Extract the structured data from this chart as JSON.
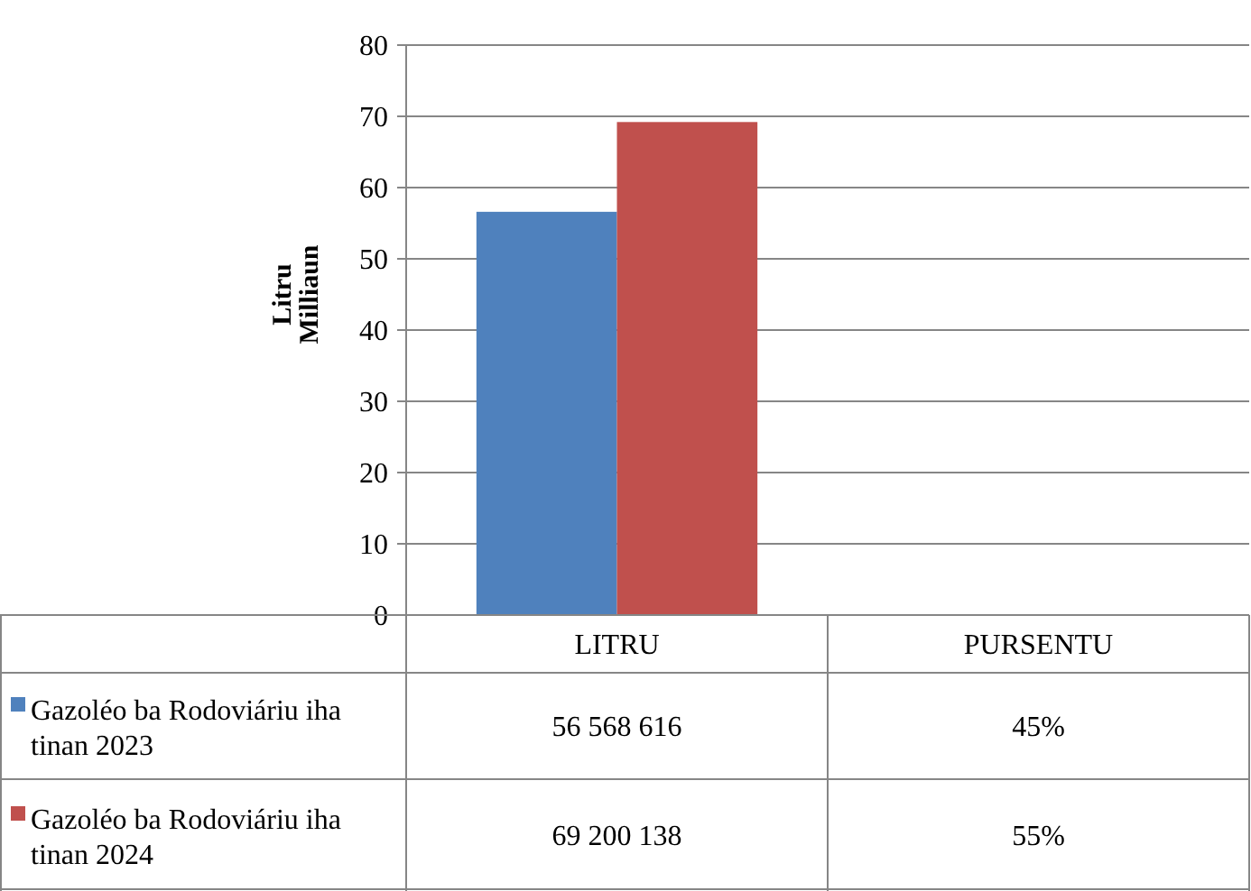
{
  "chart_data": {
    "type": "bar",
    "ylabel": "Litru\nMilliaun",
    "categories": [
      "LITRU",
      "PURSENTU"
    ],
    "series": [
      {
        "name": "Gazoléo ba Rodoviáriu iha tinan 2023",
        "color": "#4f81bd",
        "values": [
          56.6,
          null
        ]
      },
      {
        "name": "Gazoléo ba Rodoviáriu iha tinan 2024",
        "color": "#c0504d",
        "values": [
          69.2,
          null
        ]
      }
    ],
    "annotations": [
      "56 568 616",
      "45%",
      "69 200 138",
      "55%"
    ],
    "ylim": [
      0,
      80
    ],
    "yticks": [
      0,
      10,
      20,
      30,
      40,
      50,
      60,
      70,
      80
    ],
    "grid": "y",
    "legend": "bottom"
  }
}
